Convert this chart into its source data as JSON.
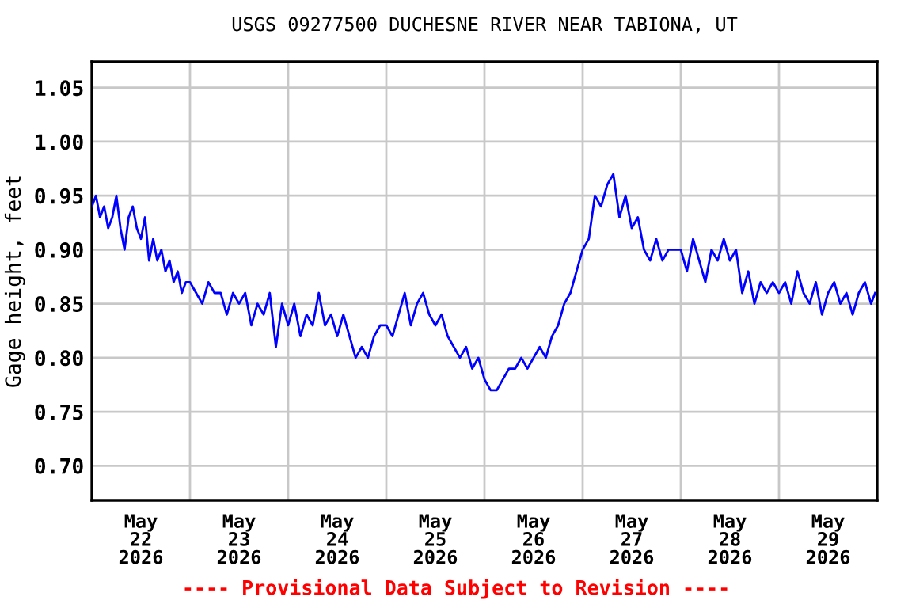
{
  "chart_data": {
    "type": "line",
    "title": "USGS 09277500 DUCHESNE RIVER NEAR TABIONA, UT",
    "ylabel": "Gage height, feet",
    "annotations": [
      "---- Provisional Data Subject to Revision ----"
    ],
    "xlim": [
      "2026-05-22T00:00",
      "2026-05-30T00:00"
    ],
    "xticks": [
      {
        "value": "2026-05-22T00:00",
        "label": null
      },
      {
        "value": "2026-05-22T12:00",
        "label": "May\n22\n2026"
      },
      {
        "value": "2026-05-23T00:00",
        "label": null
      },
      {
        "value": "2026-05-23T12:00",
        "label": "May\n23\n2026"
      },
      {
        "value": "2026-05-24T00:00",
        "label": null
      },
      {
        "value": "2026-05-24T12:00",
        "label": "May\n24\n2026"
      },
      {
        "value": "2026-05-25T00:00",
        "label": null
      },
      {
        "value": "2026-05-25T12:00",
        "label": "May\n25\n2026"
      },
      {
        "value": "2026-05-26T00:00",
        "label": null
      },
      {
        "value": "2026-05-26T12:00",
        "label": "May\n26\n2026"
      },
      {
        "value": "2026-05-27T00:00",
        "label": null
      },
      {
        "value": "2026-05-27T12:00",
        "label": "May\n27\n2026"
      },
      {
        "value": "2026-05-28T00:00",
        "label": null
      },
      {
        "value": "2026-05-28T12:00",
        "label": "May\n28\n2026"
      },
      {
        "value": "2026-05-29T00:00",
        "label": null
      },
      {
        "value": "2026-05-29T12:00",
        "label": "May\n29\n2026"
      },
      {
        "value": "2026-05-30T00:00",
        "label": null
      }
    ],
    "ylim": [
      0.668,
      1.074
    ],
    "yticks": [
      {
        "value": 0.7,
        "label": "0.70"
      },
      {
        "value": 0.75,
        "label": "0.75"
      },
      {
        "value": 0.8,
        "label": "0.80"
      },
      {
        "value": 0.85,
        "label": "0.85"
      },
      {
        "value": 0.9,
        "label": "0.90"
      },
      {
        "value": 0.95,
        "label": "0.95"
      },
      {
        "value": 1.0,
        "label": "1.00"
      },
      {
        "value": 1.05,
        "label": "1.05"
      }
    ],
    "grid": true,
    "legend": false,
    "series": [
      {
        "color": "#0000ff",
        "x": [
          "2026-05-22T00:00",
          "2026-05-22T01:00",
          "2026-05-22T02:00",
          "2026-05-22T03:00",
          "2026-05-22T04:00",
          "2026-05-22T05:00",
          "2026-05-22T06:00",
          "2026-05-22T07:00",
          "2026-05-22T08:00",
          "2026-05-22T09:00",
          "2026-05-22T10:00",
          "2026-05-22T11:00",
          "2026-05-22T12:00",
          "2026-05-22T13:00",
          "2026-05-22T14:00",
          "2026-05-22T15:00",
          "2026-05-22T16:00",
          "2026-05-22T17:00",
          "2026-05-22T18:00",
          "2026-05-22T19:00",
          "2026-05-22T20:00",
          "2026-05-22T21:00",
          "2026-05-22T22:00",
          "2026-05-22T23:00",
          "2026-05-23T00:00",
          "2026-05-23T01:30",
          "2026-05-23T03:00",
          "2026-05-23T04:30",
          "2026-05-23T06:00",
          "2026-05-23T07:30",
          "2026-05-23T09:00",
          "2026-05-23T10:30",
          "2026-05-23T12:00",
          "2026-05-23T13:30",
          "2026-05-23T15:00",
          "2026-05-23T16:30",
          "2026-05-23T18:00",
          "2026-05-23T19:30",
          "2026-05-23T21:00",
          "2026-05-23T22:30",
          "2026-05-24T00:00",
          "2026-05-24T01:30",
          "2026-05-24T03:00",
          "2026-05-24T04:30",
          "2026-05-24T06:00",
          "2026-05-24T07:30",
          "2026-05-24T09:00",
          "2026-05-24T10:30",
          "2026-05-24T12:00",
          "2026-05-24T13:30",
          "2026-05-24T15:00",
          "2026-05-24T16:30",
          "2026-05-24T18:00",
          "2026-05-24T19:30",
          "2026-05-24T21:00",
          "2026-05-24T22:30",
          "2026-05-25T00:00",
          "2026-05-25T01:30",
          "2026-05-25T03:00",
          "2026-05-25T04:30",
          "2026-05-25T06:00",
          "2026-05-25T07:30",
          "2026-05-25T09:00",
          "2026-05-25T10:30",
          "2026-05-25T12:00",
          "2026-05-25T13:30",
          "2026-05-25T15:00",
          "2026-05-25T16:30",
          "2026-05-25T18:00",
          "2026-05-25T19:30",
          "2026-05-25T21:00",
          "2026-05-25T22:30",
          "2026-05-26T00:00",
          "2026-05-26T01:30",
          "2026-05-26T03:00",
          "2026-05-26T04:30",
          "2026-05-26T06:00",
          "2026-05-26T07:30",
          "2026-05-26T09:00",
          "2026-05-26T10:30",
          "2026-05-26T12:00",
          "2026-05-26T13:30",
          "2026-05-26T15:00",
          "2026-05-26T16:30",
          "2026-05-26T18:00",
          "2026-05-26T19:30",
          "2026-05-26T21:00",
          "2026-05-26T22:30",
          "2026-05-27T00:00",
          "2026-05-27T01:30",
          "2026-05-27T03:00",
          "2026-05-27T04:30",
          "2026-05-27T06:00",
          "2026-05-27T07:30",
          "2026-05-27T09:00",
          "2026-05-27T10:30",
          "2026-05-27T12:00",
          "2026-05-27T13:30",
          "2026-05-27T15:00",
          "2026-05-27T16:30",
          "2026-05-27T18:00",
          "2026-05-27T19:30",
          "2026-05-27T21:00",
          "2026-05-27T22:30",
          "2026-05-28T00:00",
          "2026-05-28T01:30",
          "2026-05-28T03:00",
          "2026-05-28T04:30",
          "2026-05-28T06:00",
          "2026-05-28T07:30",
          "2026-05-28T09:00",
          "2026-05-28T10:30",
          "2026-05-28T12:00",
          "2026-05-28T13:30",
          "2026-05-28T15:00",
          "2026-05-28T16:30",
          "2026-05-28T18:00",
          "2026-05-28T19:30",
          "2026-05-28T21:00",
          "2026-05-28T22:30",
          "2026-05-29T00:00",
          "2026-05-29T01:30",
          "2026-05-29T03:00",
          "2026-05-29T04:30",
          "2026-05-29T06:00",
          "2026-05-29T07:30",
          "2026-05-29T09:00",
          "2026-05-29T10:30",
          "2026-05-29T12:00",
          "2026-05-29T13:30",
          "2026-05-29T15:00",
          "2026-05-29T16:30",
          "2026-05-29T18:00",
          "2026-05-29T19:30",
          "2026-05-29T21:00",
          "2026-05-29T22:30",
          "2026-05-29T23:30"
        ],
        "values": [
          0.94,
          0.95,
          0.93,
          0.94,
          0.92,
          0.93,
          0.95,
          0.92,
          0.9,
          0.93,
          0.94,
          0.92,
          0.91,
          0.93,
          0.89,
          0.91,
          0.89,
          0.9,
          0.88,
          0.89,
          0.87,
          0.88,
          0.86,
          0.87,
          0.87,
          0.86,
          0.85,
          0.87,
          0.86,
          0.86,
          0.84,
          0.86,
          0.85,
          0.86,
          0.83,
          0.85,
          0.84,
          0.86,
          0.81,
          0.85,
          0.83,
          0.85,
          0.82,
          0.84,
          0.83,
          0.86,
          0.83,
          0.84,
          0.82,
          0.84,
          0.82,
          0.8,
          0.81,
          0.8,
          0.82,
          0.83,
          0.83,
          0.82,
          0.84,
          0.86,
          0.83,
          0.85,
          0.86,
          0.84,
          0.83,
          0.84,
          0.82,
          0.81,
          0.8,
          0.81,
          0.79,
          0.8,
          0.78,
          0.77,
          0.77,
          0.78,
          0.79,
          0.79,
          0.8,
          0.79,
          0.8,
          0.81,
          0.8,
          0.82,
          0.83,
          0.85,
          0.86,
          0.88,
          0.9,
          0.91,
          0.95,
          0.94,
          0.96,
          0.97,
          0.93,
          0.95,
          0.92,
          0.93,
          0.9,
          0.89,
          0.91,
          0.89,
          0.9,
          0.9,
          0.9,
          0.88,
          0.91,
          0.89,
          0.87,
          0.9,
          0.89,
          0.91,
          0.89,
          0.9,
          0.86,
          0.88,
          0.85,
          0.87,
          0.86,
          0.87,
          0.86,
          0.87,
          0.85,
          0.88,
          0.86,
          0.85,
          0.87,
          0.84,
          0.86,
          0.87,
          0.85,
          0.86,
          0.84,
          0.86,
          0.87,
          0.85,
          0.86
        ]
      }
    ]
  }
}
